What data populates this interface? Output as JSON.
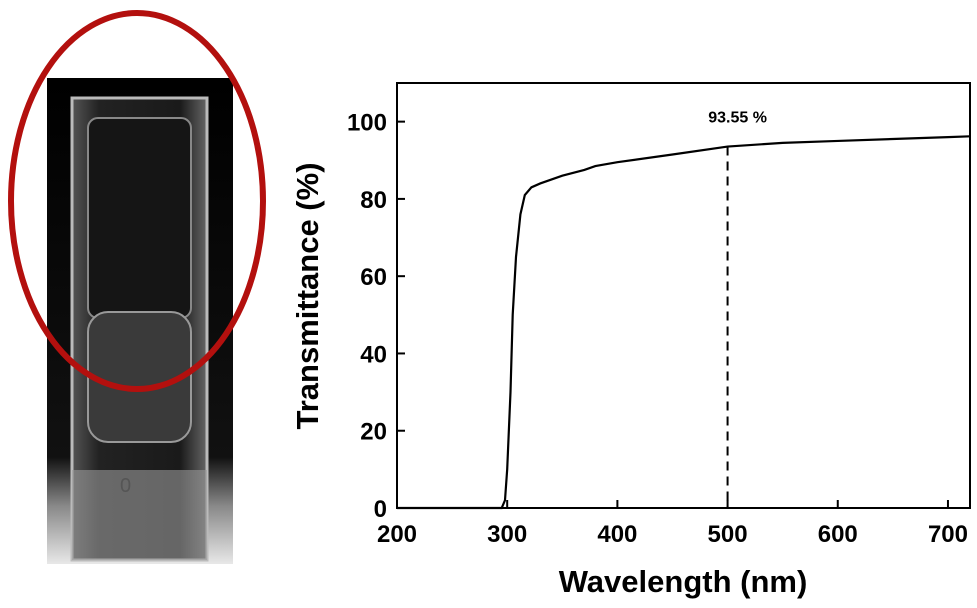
{
  "chart_data": {
    "type": "line",
    "xlabel": "Wavelength (nm)",
    "ylabel": "Transmittance (%)",
    "x": [
      200,
      295,
      298,
      300,
      303,
      305,
      308,
      312,
      316,
      322,
      330,
      350,
      370,
      380,
      400,
      450,
      500,
      550,
      600,
      650,
      700,
      720
    ],
    "values": [
      0,
      0,
      2,
      10,
      30,
      50,
      65,
      76,
      81,
      83,
      84,
      86,
      87.5,
      88.5,
      89.5,
      91.5,
      93.55,
      94.5,
      95,
      95.5,
      96,
      96.2
    ],
    "color": "#000000",
    "xlim": [
      200,
      720
    ],
    "xticks": [
      200,
      300,
      400,
      500,
      600,
      700
    ],
    "ylim": [
      0,
      110
    ],
    "yticks": [
      0,
      20,
      40,
      60,
      80,
      100
    ],
    "annotations": [
      {
        "text": "93.55 %",
        "x": 500,
        "y": 93.55
      }
    ]
  }
}
